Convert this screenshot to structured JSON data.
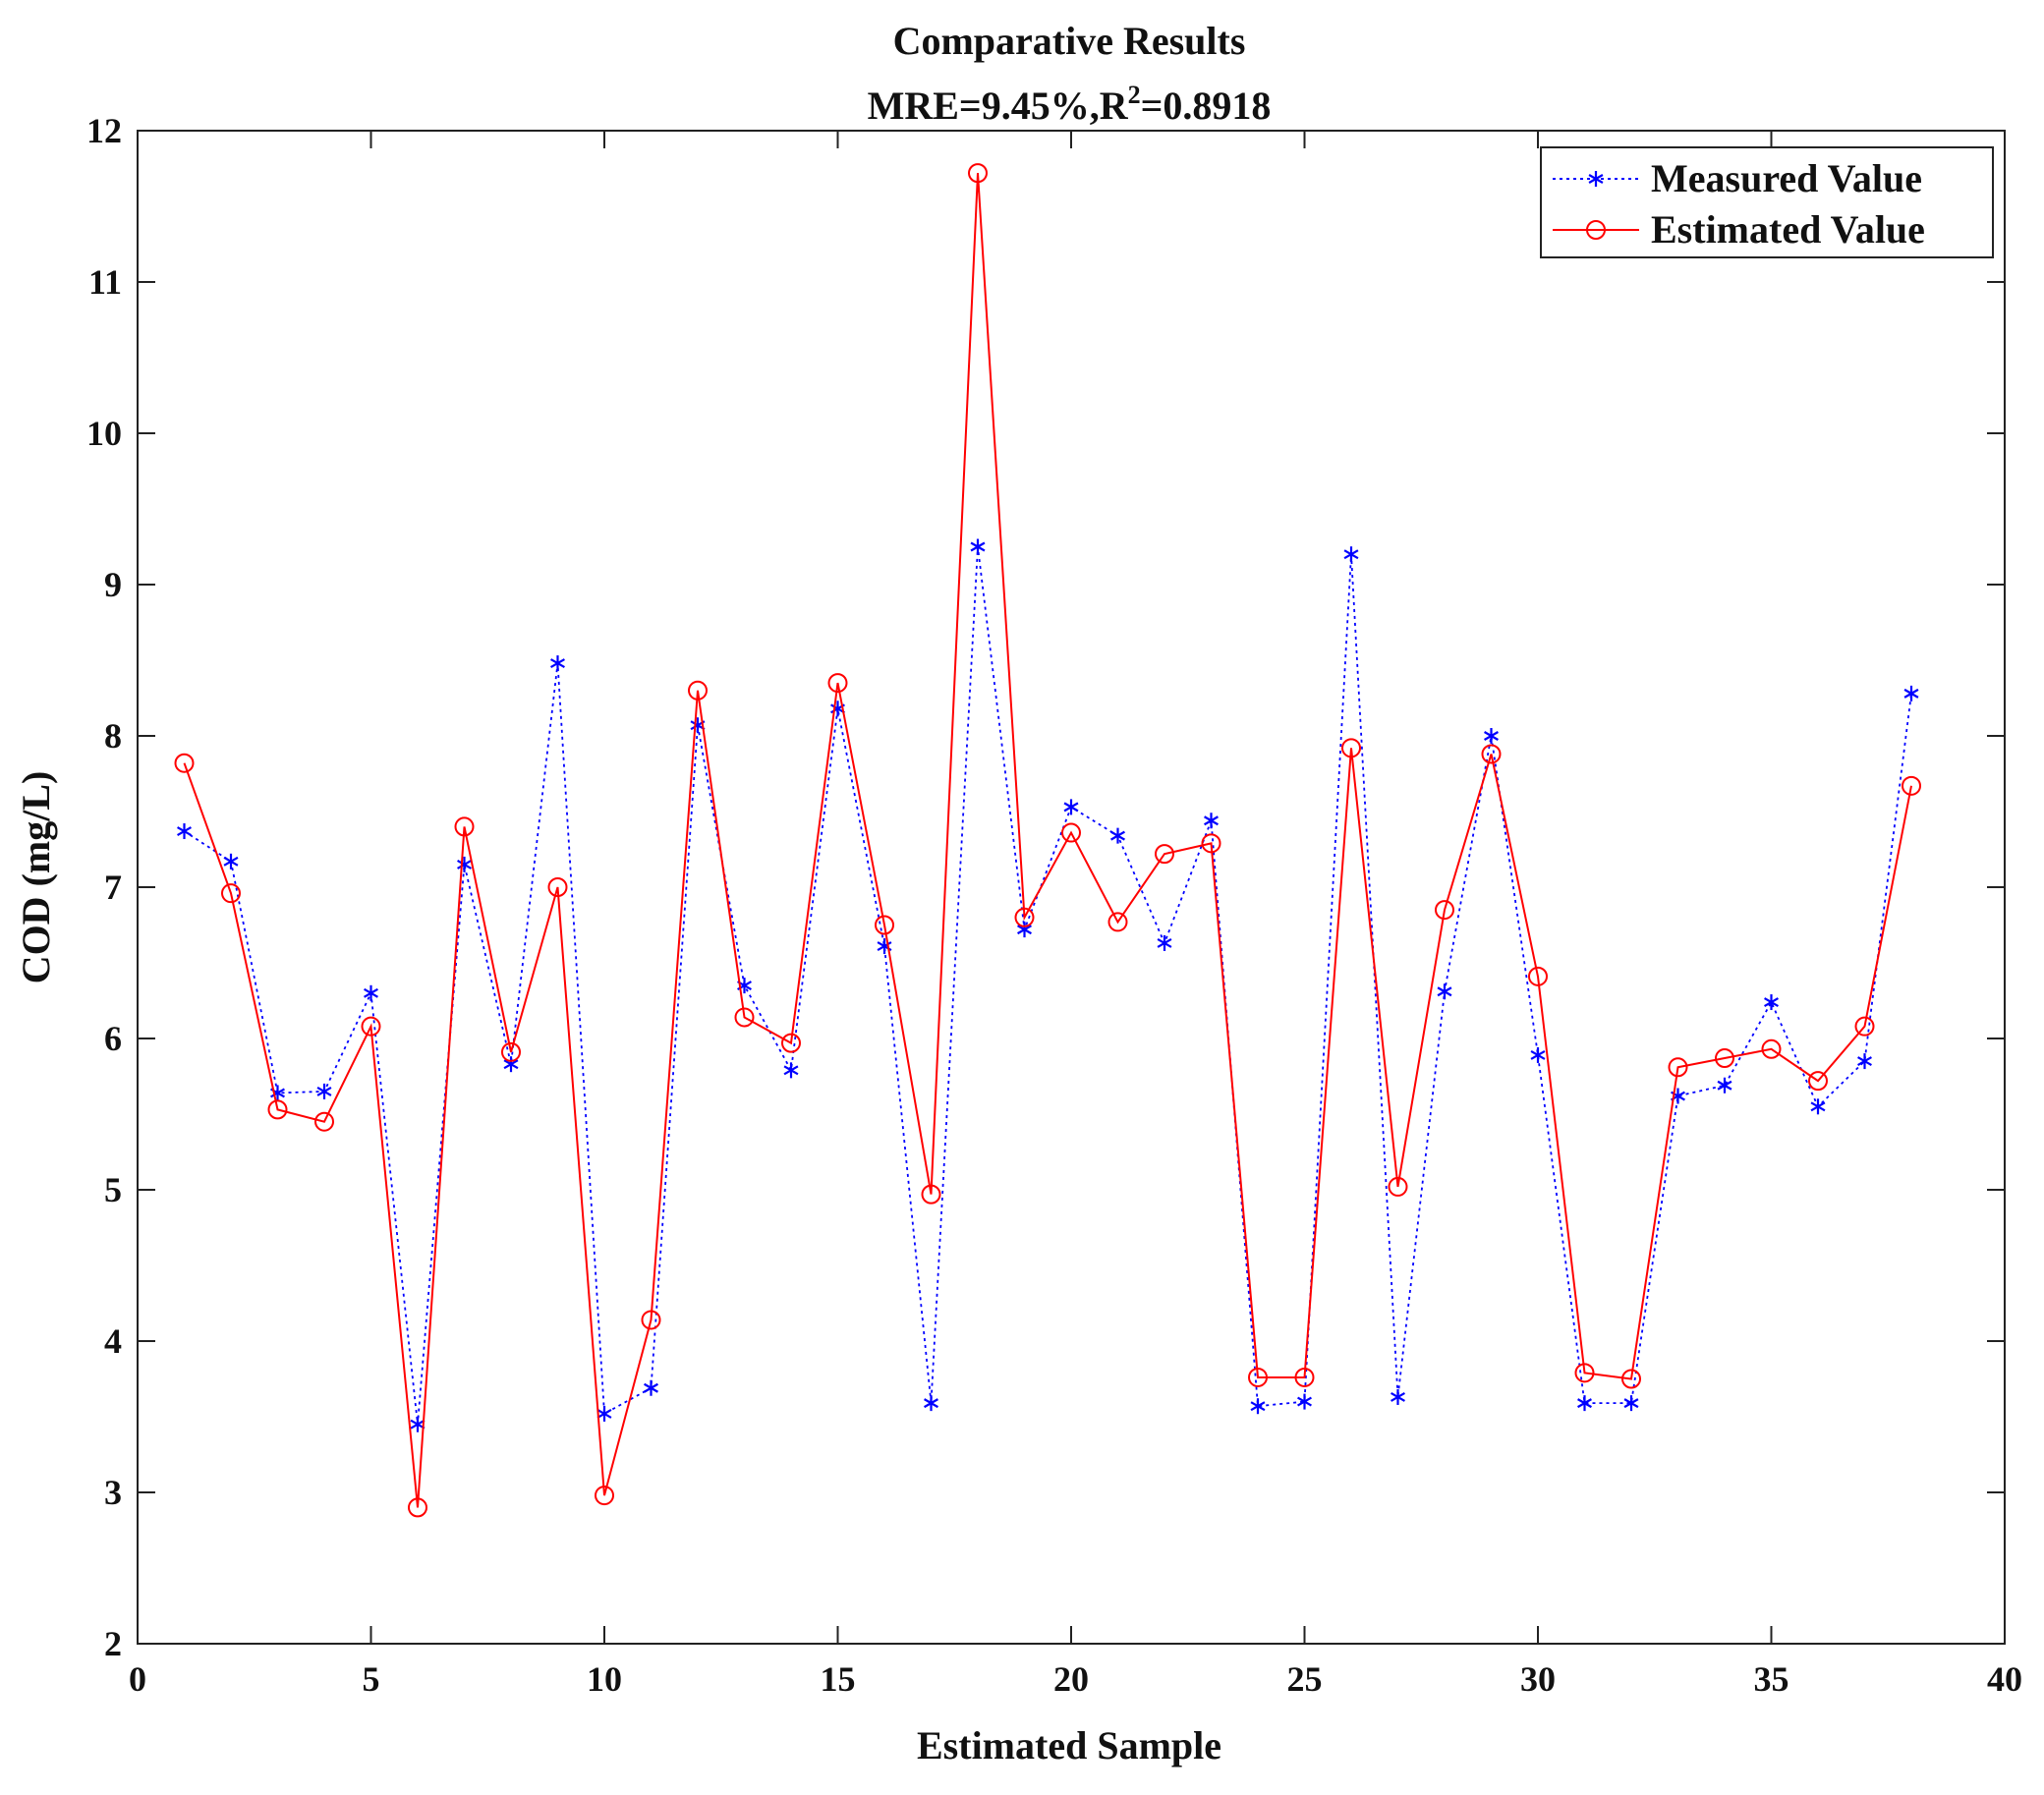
{
  "chart_data": {
    "type": "line",
    "title": "Comparative Results",
    "subtitle": {
      "prefix": "MRE=9.45%,R",
      "superscript": "2",
      "suffix": "=0.8918"
    },
    "xlabel": "Estimated Sample",
    "ylabel": "COD (mg/L)",
    "xlim": [
      0,
      40
    ],
    "ylim": [
      2,
      12
    ],
    "xticks": [
      0,
      5,
      10,
      15,
      20,
      25,
      30,
      35,
      40
    ],
    "yticks": [
      2,
      3,
      4,
      5,
      6,
      7,
      8,
      9,
      10,
      11,
      12
    ],
    "grid": false,
    "legend_position": "top-right",
    "x": [
      1,
      2,
      3,
      4,
      5,
      6,
      7,
      8,
      9,
      10,
      11,
      12,
      13,
      14,
      15,
      16,
      17,
      18,
      19,
      20,
      21,
      22,
      23,
      24,
      25,
      26,
      27,
      28,
      29,
      30,
      31,
      32,
      33,
      34,
      35,
      36,
      37,
      38
    ],
    "series": [
      {
        "name": "Measured Value",
        "color": "#0000ff",
        "line_style": "dotted",
        "marker": "asterisk",
        "values": [
          7.37,
          7.17,
          5.64,
          5.65,
          6.3,
          3.45,
          7.15,
          5.83,
          8.48,
          3.52,
          3.69,
          8.07,
          6.35,
          5.79,
          8.18,
          6.61,
          3.59,
          9.25,
          6.72,
          7.53,
          7.34,
          6.63,
          7.44,
          3.57,
          3.6,
          9.2,
          3.63,
          6.31,
          8.0,
          5.89,
          3.59,
          3.59,
          5.62,
          5.69,
          6.24,
          5.55,
          5.85,
          8.28
        ]
      },
      {
        "name": "Estimated Value",
        "color": "#ff0000",
        "line_style": "solid",
        "marker": "circle",
        "values": [
          7.82,
          6.96,
          5.53,
          5.45,
          6.08,
          2.9,
          7.4,
          5.91,
          7.0,
          2.98,
          4.14,
          8.3,
          6.14,
          5.97,
          8.35,
          6.75,
          4.97,
          11.72,
          6.8,
          7.36,
          6.77,
          7.22,
          7.29,
          3.76,
          3.76,
          7.92,
          5.02,
          6.85,
          7.88,
          6.41,
          3.79,
          3.75,
          5.81,
          5.87,
          5.93,
          5.72,
          6.08,
          7.67
        ]
      }
    ]
  }
}
